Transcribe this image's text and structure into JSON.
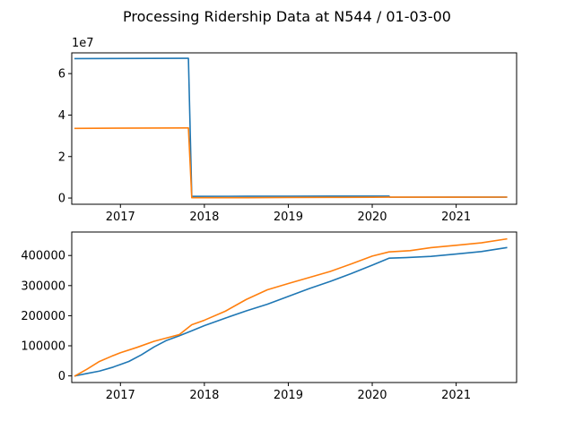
{
  "chart_data": {
    "title": "Processing Ridership Data at N544 / 01-03-00",
    "colors": {
      "series_1": "#1f77b4",
      "series_2": "#ff7f0e"
    },
    "grid": false,
    "legend": "none",
    "charts": [
      {
        "type": "line",
        "xlabel": "",
        "ylabel": "",
        "x_ticks": [
          "2017",
          "2018",
          "2019",
          "2020",
          "2021"
        ],
        "xlim": [
          2016.42,
          2021.72
        ],
        "ylim": [
          -3000000,
          70000000
        ],
        "y_ticks": [
          0,
          20000000,
          40000000,
          60000000
        ],
        "y_tick_labels": [
          "0",
          "2",
          "4",
          "6"
        ],
        "y_offset_label": "1e7",
        "series": [
          {
            "color_key": "series_1",
            "x": [
              2016.46,
              2017.8,
              2017.81,
              2017.85,
              2018.5,
              2019.0,
              2019.5,
              2020.0,
              2020.2,
              2020.21,
              2021.0,
              2021.6
            ],
            "y": [
              67200000,
              67400000,
              67400000,
              800000,
              850000,
              880000,
              900000,
              920000,
              930000,
              400000,
              420000,
              430000
            ]
          },
          {
            "color_key": "series_2",
            "x": [
              2016.46,
              2017.8,
              2017.81,
              2017.85,
              2018.5,
              2019.0,
              2019.5,
              2020.0,
              2020.2,
              2021.0,
              2021.6
            ],
            "y": [
              33600000,
              33800000,
              33800000,
              150000,
              180000,
              250000,
              300000,
              380000,
              410000,
              430000,
              455000
            ]
          }
        ]
      },
      {
        "type": "line",
        "xlabel": "",
        "ylabel": "",
        "x_ticks": [
          "2017",
          "2018",
          "2019",
          "2020",
          "2021"
        ],
        "xlim": [
          2016.42,
          2021.72
        ],
        "ylim": [
          -22000,
          478000
        ],
        "y_ticks": [
          0,
          100000,
          200000,
          300000,
          400000
        ],
        "y_tick_labels": [
          "0",
          "100000",
          "200000",
          "300000",
          "400000"
        ],
        "series": [
          {
            "color_key": "series_1",
            "x": [
              2016.46,
              2016.6,
              2016.75,
              2016.9,
              2017.0,
              2017.1,
              2017.25,
              2017.4,
              2017.55,
              2017.7,
              2017.85,
              2018.0,
              2018.25,
              2018.5,
              2018.75,
              2019.0,
              2019.25,
              2019.5,
              2019.75,
              2020.0,
              2020.2,
              2020.4,
              2020.7,
              2021.0,
              2021.3,
              2021.6
            ],
            "y": [
              0,
              8000,
              16000,
              28000,
              38000,
              48000,
              70000,
              96000,
              118000,
              133000,
              150000,
              167000,
              192000,
              216000,
              238000,
              264000,
              290000,
              314000,
              340000,
              368000,
              391000,
              393000,
              397000,
              405000,
              413000,
              426000
            ]
          },
          {
            "color_key": "series_2",
            "x": [
              2016.46,
              2016.6,
              2016.75,
              2016.9,
              2017.0,
              2017.2,
              2017.4,
              2017.55,
              2017.7,
              2017.85,
              2018.0,
              2018.25,
              2018.5,
              2018.75,
              2019.0,
              2019.25,
              2019.5,
              2019.75,
              2020.0,
              2020.2,
              2020.45,
              2020.7,
              2021.0,
              2021.3,
              2021.6
            ],
            "y": [
              0,
              22000,
              48000,
              66000,
              77000,
              95000,
              115000,
              126000,
              137000,
              170000,
              185000,
              215000,
              254000,
              286000,
              307000,
              327000,
              347000,
              372000,
              398000,
              412000,
              416000,
              426000,
              434000,
              442000,
              455000
            ]
          }
        ]
      }
    ]
  }
}
